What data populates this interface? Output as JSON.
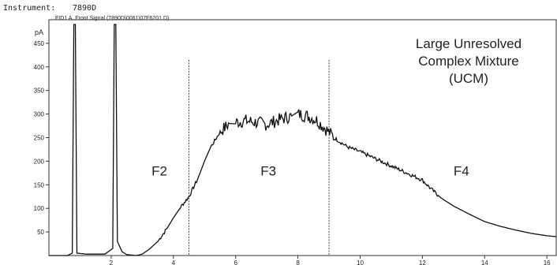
{
  "header": {
    "instrument_label": "Instrument:",
    "instrument_id": "7890D",
    "signal_label": "FID1 A, Front Signal (7890D\\0061\\07F6201.D)"
  },
  "chart_data": {
    "type": "line",
    "title": "",
    "xlabel": "",
    "ylabel": "pA",
    "xlim": [
      0,
      16.3
    ],
    "ylim": [
      0,
      500
    ],
    "x_ticks": [
      2,
      4,
      6,
      8,
      10,
      12,
      14,
      16
    ],
    "x_tick_labels": [
      "2",
      "4",
      "6",
      "8",
      "10",
      "12",
      "14",
      "16"
    ],
    "y_ticks": [
      50,
      100,
      150,
      200,
      250,
      300,
      350,
      400,
      450
    ],
    "y_tick_labels": [
      "50",
      "100",
      "150",
      "200",
      "250",
      "300",
      "350",
      "400",
      "450"
    ],
    "grid": false,
    "line_color": "#111111",
    "series": [
      {
        "x": [
          0.0,
          0.6,
          0.75,
          0.8,
          0.85,
          0.9,
          1.2,
          1.8,
          2.05,
          2.1,
          2.15,
          2.2,
          2.35,
          2.5,
          2.8,
          3.0,
          3.2,
          3.5,
          3.8,
          4.0,
          4.2,
          4.5,
          4.8,
          5.0,
          5.2,
          5.5,
          5.8,
          6.0,
          6.3,
          6.6,
          7.0,
          7.4,
          7.8,
          8.0,
          8.3,
          8.6,
          8.9,
          9.2,
          9.6,
          10.0,
          10.5,
          11.0,
          11.5,
          12.0,
          12.3,
          12.6,
          13.0,
          13.5,
          14.0,
          14.5,
          15.0,
          15.5,
          16.0,
          16.3
        ],
        "y": [
          0,
          0,
          5,
          490,
          490,
          5,
          3,
          3,
          15,
          490,
          490,
          30,
          8,
          2,
          0,
          3,
          12,
          30,
          58,
          80,
          100,
          125,
          165,
          200,
          230,
          262,
          280,
          282,
          286,
          283,
          278,
          288,
          296,
          300,
          296,
          287,
          268,
          248,
          230,
          220,
          205,
          190,
          175,
          160,
          140,
          122,
          105,
          88,
          72,
          62,
          54,
          47,
          42,
          40
        ]
      }
    ],
    "dashed_markers_x": [
      4.5,
      9.0
    ],
    "region_labels": [
      {
        "text": "F2",
        "x": 3.3,
        "y": 170
      },
      {
        "text": "F3",
        "x": 6.8,
        "y": 170
      },
      {
        "text": "F4",
        "x": 13.0,
        "y": 170
      }
    ],
    "annotation": {
      "lines": [
        "Large Unresolved",
        "Complex Mixture",
        "(UCM)"
      ]
    }
  }
}
